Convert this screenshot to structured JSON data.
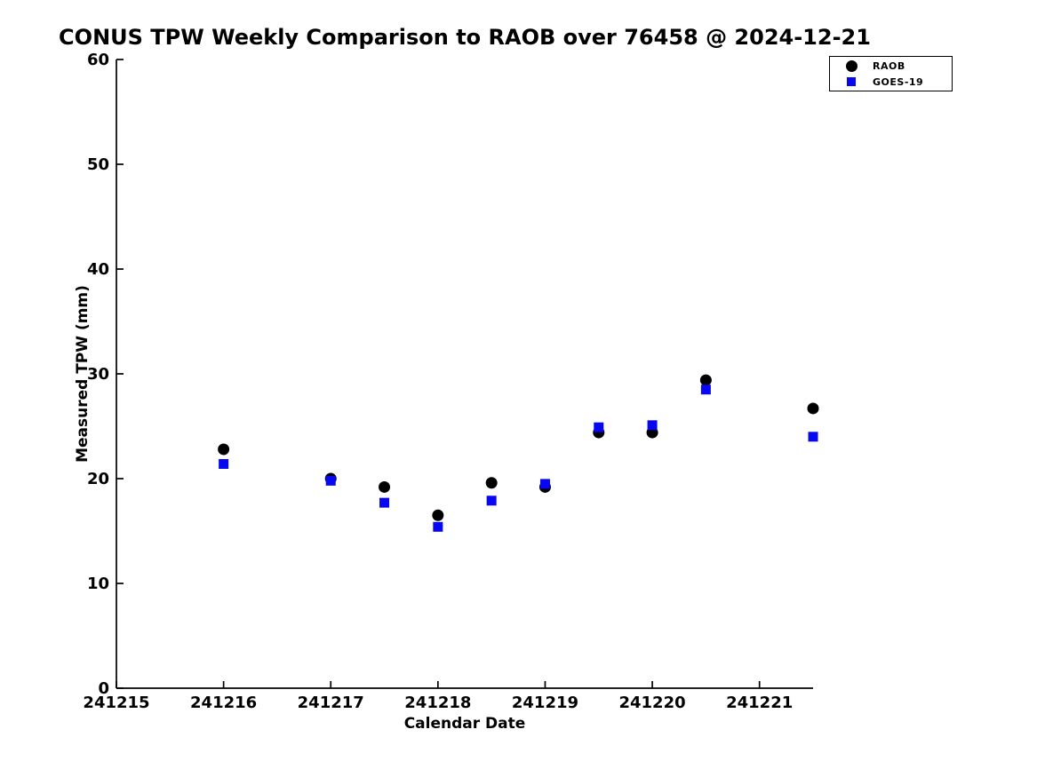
{
  "page": {
    "background": "#ffffff"
  },
  "chart_data": {
    "type": "scatter",
    "title": "CONUS TPW Weekly Comparison to RAOB over 76458 @ 2024-12-21",
    "xlabel": "Calendar Date",
    "ylabel": "Measured TPW (mm)",
    "xlim": [
      241215,
      241221.5
    ],
    "ylim": [
      0,
      60
    ],
    "x_ticks": [
      241215,
      241216,
      241217,
      241218,
      241219,
      241220,
      241221
    ],
    "y_ticks": [
      0,
      10,
      20,
      30,
      40,
      50,
      60
    ],
    "grid": false,
    "legend_position": "top-right",
    "axis_color": "#000000",
    "series": [
      {
        "name": "RAOB",
        "marker": "circle",
        "color": "#000000",
        "x": [
          241216,
          241217,
          241217.5,
          241218,
          241218.5,
          241219,
          241219.5,
          241220,
          241220.5,
          241221.5
        ],
        "y": [
          22.8,
          20.0,
          19.2,
          16.5,
          19.6,
          19.2,
          24.4,
          24.4,
          29.4,
          26.7
        ]
      },
      {
        "name": "GOES-19",
        "marker": "square",
        "color": "#0707F2",
        "x": [
          241216,
          241217,
          241217.5,
          241218,
          241218.5,
          241219,
          241219.5,
          241220,
          241220.5,
          241221.5
        ],
        "y": [
          21.4,
          19.8,
          17.7,
          15.4,
          17.9,
          19.5,
          24.9,
          25.1,
          28.5,
          24.0
        ]
      }
    ]
  }
}
